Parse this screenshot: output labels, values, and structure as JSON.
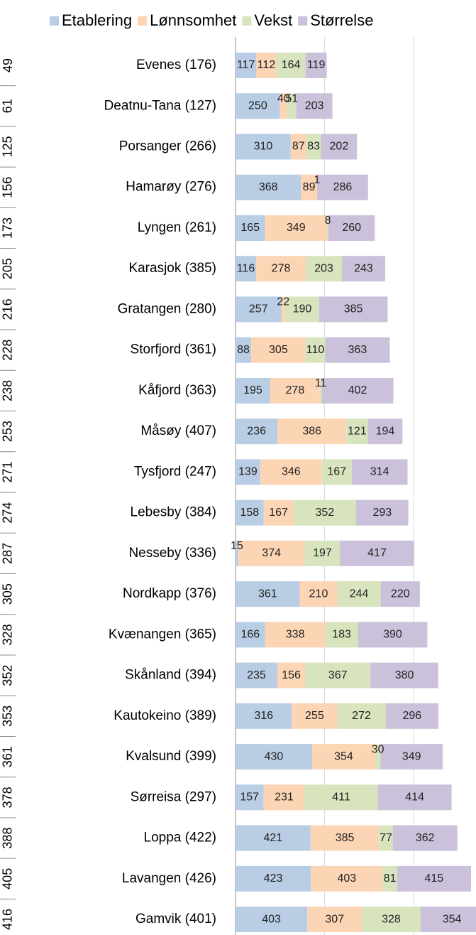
{
  "chart_data": {
    "type": "stacked_barh",
    "categories": [
      "Evenes (176)",
      "Deatnu-Tana (127)",
      "Porsanger (266)",
      "Hamarøy (276)",
      "Lyngen (261)",
      "Karasjok (385)",
      "Gratangen (280)",
      "Storfjord (361)",
      "Kåfjord (363)",
      "Måsøy (407)",
      "Tysfjord (247)",
      "Lebesby (384)",
      "Nesseby (336)",
      "Nordkapp (376)",
      "Kvænangen (365)",
      "Skånland (394)",
      "Kautokeino (389)",
      "Kvalsund (399)",
      "Sørreisa (297)",
      "Loppa (422)",
      "Lavangen (426)",
      "Gamvik (401)"
    ],
    "ranks": [
      49,
      61,
      125,
      156,
      173,
      205,
      216,
      228,
      238,
      253,
      271,
      274,
      287,
      305,
      328,
      352,
      353,
      361,
      378,
      388,
      405,
      416
    ],
    "series": [
      {
        "name": "Etablering",
        "color": "#b9cde5",
        "values": [
          117,
          250,
          310,
          368,
          165,
          116,
          257,
          88,
          195,
          236,
          139,
          158,
          15,
          361,
          166,
          235,
          316,
          430,
          157,
          421,
          423,
          403
        ]
      },
      {
        "name": "Lønnsomhet",
        "color": "#fcd5b5",
        "values": [
          112,
          40,
          87,
          89,
          349,
          278,
          22,
          305,
          278,
          386,
          346,
          167,
          374,
          210,
          338,
          156,
          255,
          354,
          231,
          385,
          403,
          307
        ]
      },
      {
        "name": "Vekst",
        "color": "#d7e4bd",
        "values": [
          164,
          51,
          83,
          1,
          8,
          203,
          190,
          110,
          11,
          121,
          167,
          352,
          197,
          244,
          183,
          367,
          272,
          30,
          411,
          77,
          81,
          328
        ]
      },
      {
        "name": "Størrelse",
        "color": "#ccc1da",
        "values": [
          119,
          203,
          202,
          286,
          260,
          243,
          385,
          363,
          402,
          194,
          314,
          293,
          417,
          220,
          390,
          380,
          296,
          349,
          414,
          362,
          415,
          354
        ]
      }
    ],
    "xlim": [
      0,
      1350
    ],
    "xticks": [
      0,
      500,
      1000
    ],
    "grid": true,
    "legend": "top"
  }
}
